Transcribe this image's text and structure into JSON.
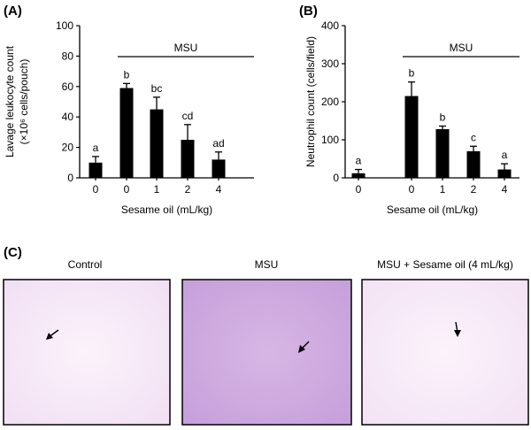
{
  "chart_data": [
    {
      "type": "bar",
      "panel_label": "(A)",
      "ylabel": "Lavage leukocyte count",
      "ylabel_units": "(×10⁶ cells/pouch)",
      "xlabel": "Sesame oil (mL/kg)",
      "categories": [
        "0",
        "0",
        "1",
        "2",
        "4"
      ],
      "values": [
        10,
        59,
        45,
        25,
        12
      ],
      "errors": [
        4,
        3,
        8,
        10,
        5
      ],
      "significance": [
        "a",
        "b",
        "bc",
        "cd",
        "ad"
      ],
      "ylim": [
        0,
        100
      ],
      "yticks": [
        0,
        20,
        40,
        60,
        80,
        100
      ],
      "group_label": "MSU",
      "group_span": [
        1,
        4
      ]
    },
    {
      "type": "bar",
      "panel_label": "(B)",
      "ylabel": "Neutrophil count (cells/field)",
      "xlabel": "Sesame oil (mL/kg)",
      "categories": [
        "0",
        "0",
        "1",
        "2",
        "4"
      ],
      "values": [
        12,
        215,
        128,
        70,
        22
      ],
      "errors": [
        10,
        37,
        8,
        13,
        15
      ],
      "significance": [
        "a",
        "b",
        "b",
        "c",
        "a"
      ],
      "ylim": [
        0,
        400
      ],
      "yticks": [
        0,
        100,
        200,
        300,
        400
      ],
      "group_label": "MSU",
      "group_span": [
        1,
        4
      ]
    }
  ],
  "micrographs": {
    "panel_label": "(C)",
    "colors": {
      "background": "#f4e4f5",
      "cell": "#5a4170",
      "blob": "#cf8fe0"
    },
    "items": [
      {
        "title": "Control",
        "cell_density": "low"
      },
      {
        "title": "MSU",
        "cell_density": "high"
      },
      {
        "title": "MSU + Sesame oil (4 mL/kg)",
        "cell_density": "low"
      }
    ]
  }
}
